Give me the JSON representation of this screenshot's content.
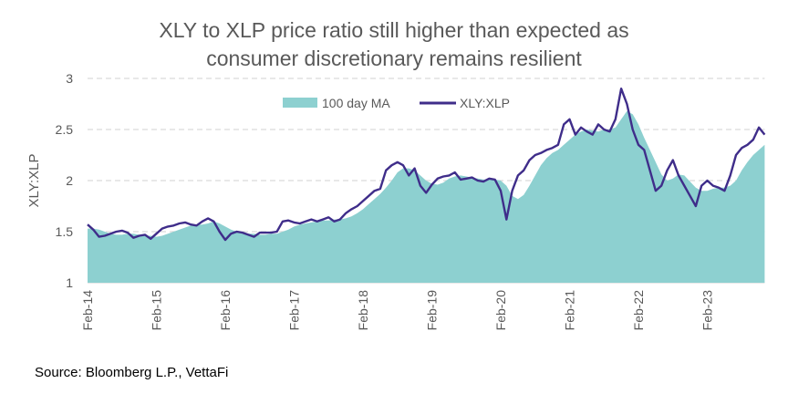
{
  "chart_data": {
    "type": "area+line",
    "title_line1": "XLY to XLP price ratio still higher than expected as",
    "title_line2": "consumer discretionary remains resilient",
    "xlabel": "",
    "ylabel": "XLY:XLP",
    "ylim": [
      1,
      3
    ],
    "yticks": [
      1,
      1.5,
      2,
      2.5,
      3
    ],
    "ytick_labels": [
      "1",
      "1.5",
      "2",
      "2.5",
      "3"
    ],
    "xticks": [
      "2014-02",
      "2015-02",
      "2016-02",
      "2017-02",
      "2018-02",
      "2019-02",
      "2020-02",
      "2021-02",
      "2022-02",
      "2023-02"
    ],
    "xtick_labels": [
      "Feb-14",
      "Feb-15",
      "Feb-16",
      "Feb-17",
      "Feb-18",
      "Feb-19",
      "Feb-20",
      "Feb-21",
      "Feb-22",
      "Feb-23"
    ],
    "grid": "horizontal dashed",
    "legend_placement": "top-center",
    "x_start": "2014-02",
    "x_frequency": "monthly",
    "series": [
      {
        "name": "100 day MA",
        "kind": "area",
        "color": "#8dd0d0",
        "values": [
          1.53,
          1.53,
          1.52,
          1.5,
          1.48,
          1.47,
          1.47,
          1.48,
          1.48,
          1.47,
          1.46,
          1.46,
          1.45,
          1.46,
          1.48,
          1.5,
          1.52,
          1.54,
          1.56,
          1.57,
          1.57,
          1.58,
          1.6,
          1.58,
          1.55,
          1.52,
          1.5,
          1.48,
          1.48,
          1.48,
          1.47,
          1.47,
          1.48,
          1.48,
          1.5,
          1.52,
          1.55,
          1.57,
          1.58,
          1.59,
          1.6,
          1.61,
          1.61,
          1.62,
          1.62,
          1.63,
          1.65,
          1.68,
          1.72,
          1.77,
          1.82,
          1.87,
          1.93,
          2.0,
          2.08,
          2.12,
          2.12,
          2.1,
          2.05,
          2.0,
          1.97,
          1.96,
          1.98,
          2.02,
          2.04,
          2.05,
          2.04,
          2.03,
          2.02,
          2.01,
          2.01,
          2.01,
          2.0,
          1.95,
          1.85,
          1.82,
          1.86,
          1.95,
          2.05,
          2.15,
          2.22,
          2.27,
          2.3,
          2.35,
          2.4,
          2.45,
          2.48,
          2.5,
          2.49,
          2.48,
          2.5,
          2.5,
          2.52,
          2.6,
          2.68,
          2.65,
          2.55,
          2.42,
          2.3,
          2.18,
          2.06,
          2.0,
          2.02,
          2.06,
          2.05,
          1.99,
          1.93,
          1.9,
          1.9,
          1.92,
          1.93,
          1.93,
          1.95,
          2.0,
          2.1,
          2.18,
          2.25,
          2.3,
          2.35
        ]
      },
      {
        "name": "XLY:XLP",
        "kind": "line",
        "color": "#3f2d8a",
        "values": [
          1.57,
          1.52,
          1.45,
          1.46,
          1.48,
          1.5,
          1.51,
          1.49,
          1.44,
          1.46,
          1.47,
          1.43,
          1.48,
          1.53,
          1.55,
          1.56,
          1.58,
          1.59,
          1.57,
          1.56,
          1.6,
          1.63,
          1.6,
          1.5,
          1.42,
          1.48,
          1.5,
          1.49,
          1.47,
          1.45,
          1.49,
          1.49,
          1.49,
          1.5,
          1.6,
          1.61,
          1.59,
          1.58,
          1.6,
          1.62,
          1.6,
          1.62,
          1.64,
          1.6,
          1.62,
          1.68,
          1.72,
          1.75,
          1.8,
          1.85,
          1.9,
          1.92,
          2.1,
          2.15,
          2.18,
          2.15,
          2.05,
          2.12,
          1.95,
          1.88,
          1.96,
          2.02,
          2.04,
          2.05,
          2.08,
          2.01,
          2.02,
          2.03,
          2.0,
          1.99,
          2.02,
          2.01,
          1.9,
          1.62,
          1.9,
          2.05,
          2.1,
          2.2,
          2.25,
          2.27,
          2.3,
          2.32,
          2.35,
          2.55,
          2.6,
          2.45,
          2.52,
          2.48,
          2.45,
          2.55,
          2.5,
          2.48,
          2.6,
          2.9,
          2.75,
          2.5,
          2.35,
          2.3,
          2.1,
          1.9,
          1.95,
          2.1,
          2.2,
          2.05,
          1.95,
          1.85,
          1.75,
          1.95,
          2.0,
          1.95,
          1.93,
          1.9,
          2.05,
          2.25,
          2.32,
          2.35,
          2.4,
          2.52,
          2.45
        ]
      }
    ]
  },
  "source": "Source: Bloomberg L.P., VettaFi"
}
